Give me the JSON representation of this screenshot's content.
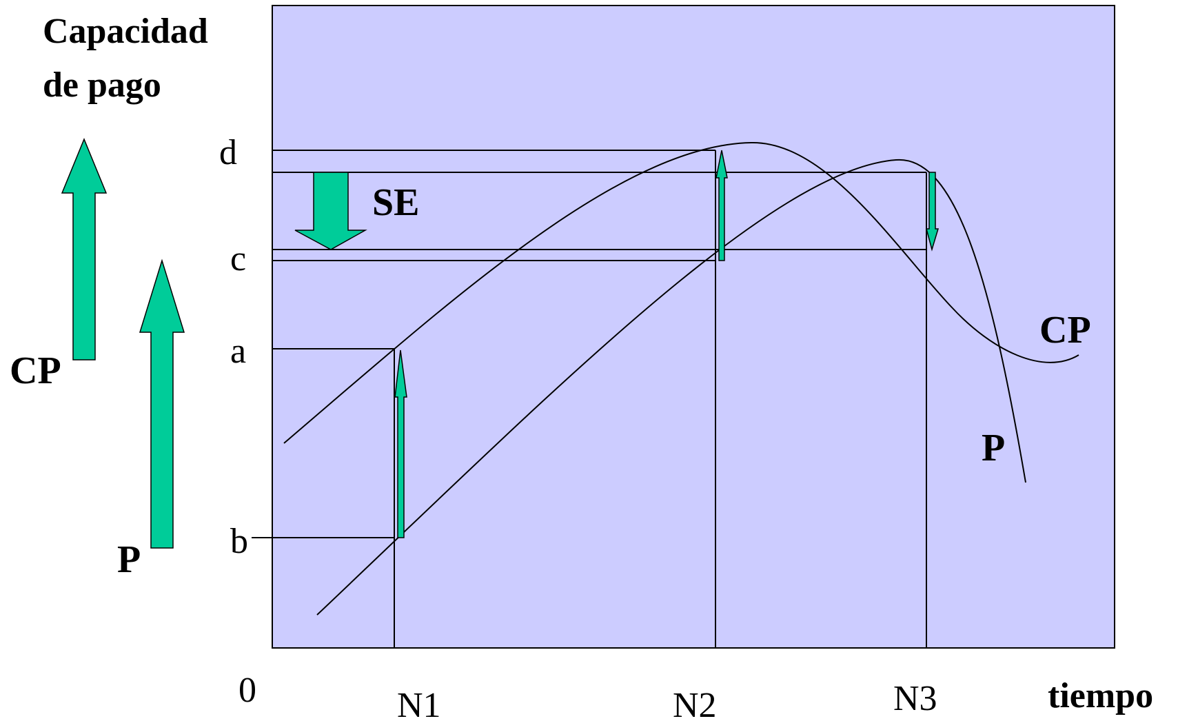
{
  "ylabel_line1": "Capacidad",
  "ylabel_line2": "de pago",
  "xlabel": "tiempo",
  "origin": "0",
  "y_levels": [
    "d",
    "c",
    "a",
    "b"
  ],
  "x_levels": [
    "N1",
    "N2",
    "N3"
  ],
  "curve_labels": {
    "cp": "CP",
    "p": "P"
  },
  "legend": {
    "cp": "CP",
    "p": "P"
  },
  "annotation_se": "SE",
  "colors": {
    "plot_background": "#ccccff",
    "arrow_fill": "#00cc99",
    "line": "#000000"
  }
}
